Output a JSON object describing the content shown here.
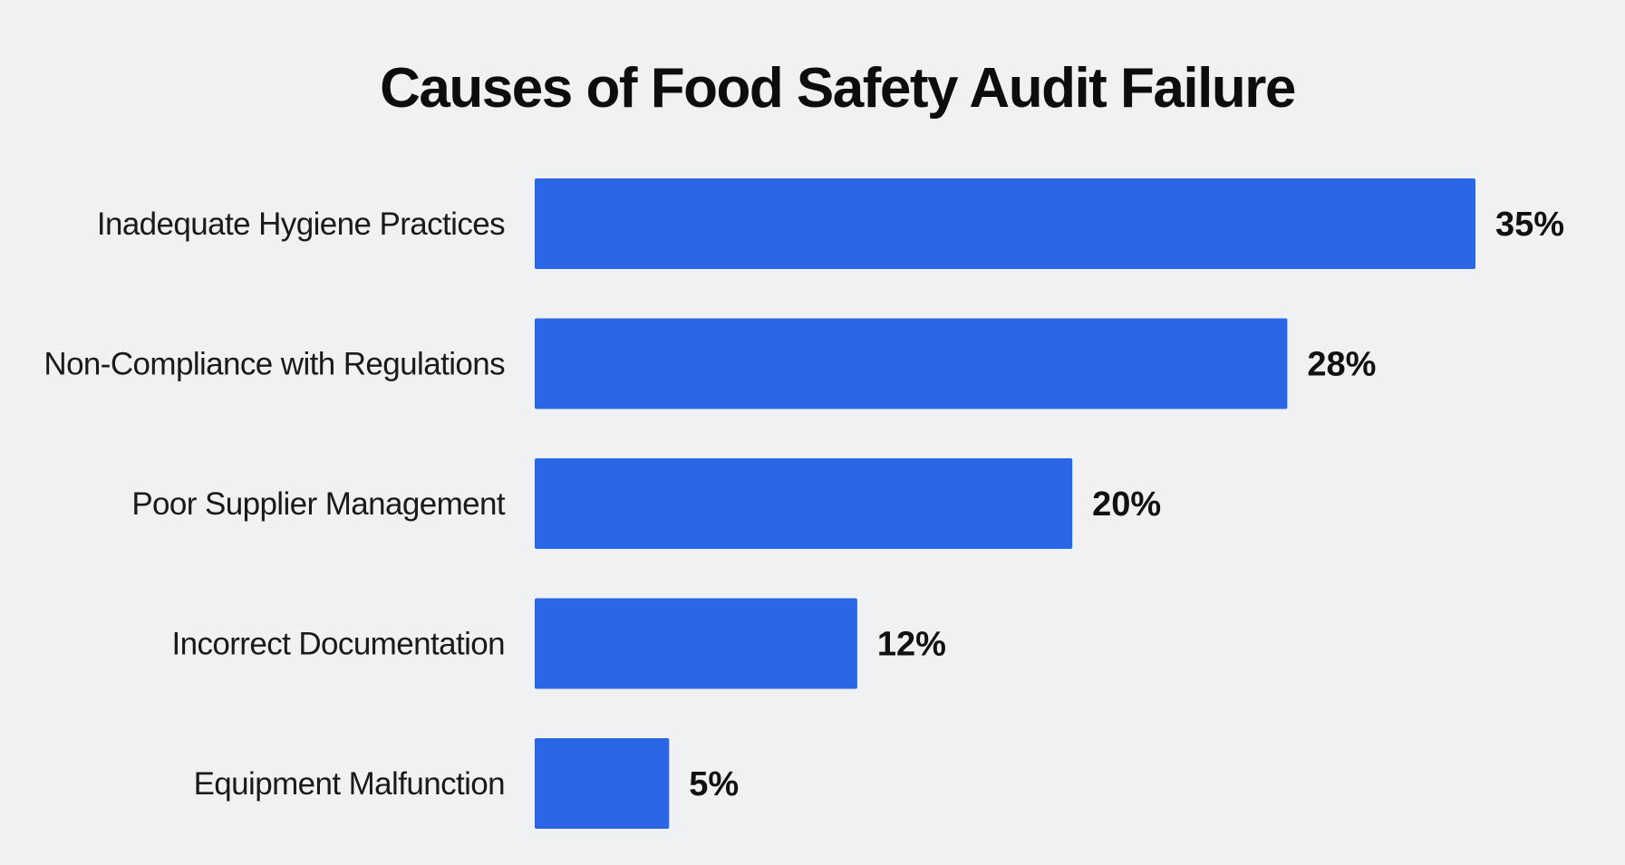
{
  "chart_data": {
    "type": "bar",
    "orientation": "horizontal",
    "title": "Causes of Food Safety Audit Failure",
    "categories": [
      "Inadequate Hygiene Practices",
      "Non-Compliance with Regulations",
      "Poor Supplier Management",
      "Incorrect Documentation",
      "Equipment Malfunction"
    ],
    "values": [
      35,
      28,
      20,
      12,
      5
    ],
    "value_labels": [
      "35%",
      "28%",
      "20%",
      "12%",
      "5%"
    ],
    "unit": "%",
    "xlabel": "",
    "ylabel": "",
    "xlim": [
      0,
      35
    ],
    "grid": false,
    "legend": "none",
    "bar_color": "#2b66e6"
  }
}
